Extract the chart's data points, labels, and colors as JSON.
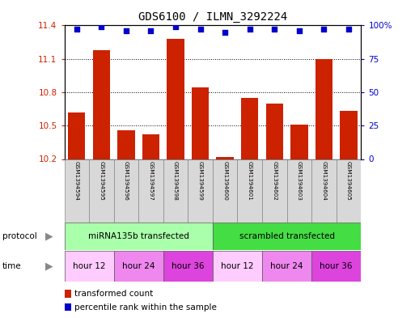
{
  "title": "GDS6100 / ILMN_3292224",
  "samples": [
    "GSM1394594",
    "GSM1394595",
    "GSM1394596",
    "GSM1394597",
    "GSM1394598",
    "GSM1394599",
    "GSM1394600",
    "GSM1394601",
    "GSM1394602",
    "GSM1394603",
    "GSM1394604",
    "GSM1394605"
  ],
  "bar_values": [
    10.62,
    11.18,
    10.46,
    10.42,
    11.28,
    10.84,
    10.22,
    10.75,
    10.7,
    10.51,
    11.1,
    10.63
  ],
  "percentile_values": [
    97,
    99,
    96,
    96,
    99,
    97,
    95,
    97,
    97,
    96,
    97,
    97
  ],
  "ylim_left": [
    10.2,
    11.4
  ],
  "ylim_right": [
    0,
    100
  ],
  "yticks_left": [
    10.2,
    10.5,
    10.8,
    11.1,
    11.4
  ],
  "yticks_right": [
    0,
    25,
    50,
    75,
    100
  ],
  "bar_color": "#cc2200",
  "dot_color": "#0000cc",
  "protocol_groups": [
    {
      "label": "miRNA135b transfected",
      "start": 0,
      "end": 5,
      "color": "#aaffaa"
    },
    {
      "label": "scrambled transfected",
      "start": 6,
      "end": 11,
      "color": "#44dd44"
    }
  ],
  "time_groups": [
    {
      "label": "hour 12",
      "start": 0,
      "end": 1,
      "color": "#ffccff"
    },
    {
      "label": "hour 24",
      "start": 2,
      "end": 3,
      "color": "#ee88ee"
    },
    {
      "label": "hour 36",
      "start": 4,
      "end": 5,
      "color": "#dd44dd"
    },
    {
      "label": "hour 12",
      "start": 6,
      "end": 7,
      "color": "#ffccff"
    },
    {
      "label": "hour 24",
      "start": 8,
      "end": 9,
      "color": "#ee88ee"
    },
    {
      "label": "hour 36",
      "start": 10,
      "end": 11,
      "color": "#dd44dd"
    }
  ],
  "sample_box_color": "#d8d8d8",
  "legend": [
    {
      "label": "transformed count",
      "color": "#cc2200"
    },
    {
      "label": "percentile rank within the sample",
      "color": "#0000cc"
    }
  ],
  "title_fontsize": 10
}
